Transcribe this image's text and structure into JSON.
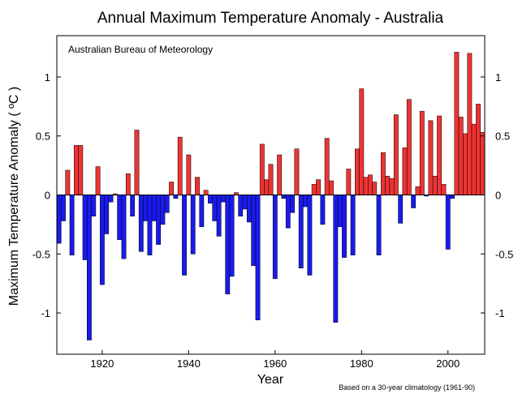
{
  "chart_data": {
    "type": "bar",
    "title": "Annual Maximum Temperature Anomaly - Australia",
    "xlabel": "Year",
    "ylabel": "Maximum Temperature Anomaly ( ºC )",
    "inset_label": "Australian Bureau of Meteorology",
    "footnote": "Based on a 30-year climatology (1961-90)",
    "xlim": [
      1909.5,
      2008.5
    ],
    "ylim": [
      -1.35,
      1.35
    ],
    "x_ticks": [
      1920,
      1940,
      1960,
      1980,
      2000
    ],
    "y_ticks": [
      -1,
      -0.5,
      0,
      0.5,
      1
    ],
    "grid": false,
    "positive_color": "#ee3333",
    "negative_color": "#1a1aee",
    "x": [
      1910,
      1911,
      1912,
      1913,
      1914,
      1915,
      1916,
      1917,
      1918,
      1919,
      1920,
      1921,
      1922,
      1923,
      1924,
      1925,
      1926,
      1927,
      1928,
      1929,
      1930,
      1931,
      1932,
      1933,
      1934,
      1935,
      1936,
      1937,
      1938,
      1939,
      1940,
      1941,
      1942,
      1943,
      1944,
      1945,
      1946,
      1947,
      1948,
      1949,
      1950,
      1951,
      1952,
      1953,
      1954,
      1955,
      1956,
      1957,
      1958,
      1959,
      1960,
      1961,
      1962,
      1963,
      1964,
      1965,
      1966,
      1967,
      1968,
      1969,
      1970,
      1971,
      1972,
      1973,
      1974,
      1975,
      1976,
      1977,
      1978,
      1979,
      1980,
      1981,
      1982,
      1983,
      1984,
      1985,
      1986,
      1987,
      1988,
      1989,
      1990,
      1991,
      1992,
      1993,
      1994,
      1995,
      1996,
      1997,
      1998,
      1999,
      2000,
      2001,
      2002,
      2003,
      2004,
      2005,
      2006,
      2007,
      2008
    ],
    "values": [
      -0.41,
      -0.22,
      0.21,
      -0.51,
      0.42,
      0.42,
      -0.55,
      -1.23,
      -0.18,
      0.24,
      -0.76,
      -0.33,
      -0.06,
      0.01,
      -0.38,
      -0.54,
      0.18,
      -0.18,
      0.55,
      -0.48,
      -0.22,
      -0.51,
      -0.22,
      -0.42,
      -0.25,
      -0.15,
      0.11,
      -0.03,
      0.49,
      -0.68,
      0.34,
      -0.5,
      0.15,
      -0.27,
      0.04,
      -0.07,
      -0.22,
      -0.35,
      -0.06,
      -0.84,
      -0.69,
      0.02,
      -0.18,
      -0.12,
      -0.23,
      -0.6,
      -1.06,
      0.43,
      0.13,
      0.26,
      -0.71,
      0.34,
      -0.03,
      -0.28,
      -0.15,
      0.39,
      -0.62,
      -0.1,
      -0.68,
      0.09,
      0.13,
      -0.25,
      0.48,
      0.12,
      -1.08,
      -0.27,
      -0.53,
      0.22,
      -0.51,
      0.39,
      0.9,
      0.15,
      0.17,
      0.11,
      -0.51,
      0.36,
      0.16,
      0.14,
      0.68,
      -0.24,
      0.4,
      0.81,
      -0.11,
      0.07,
      0.71,
      -0.01,
      0.63,
      0.16,
      0.67,
      0.09,
      -0.46,
      -0.03,
      1.21,
      0.66,
      0.52,
      1.2,
      0.6,
      0.77,
      0.53
    ]
  }
}
